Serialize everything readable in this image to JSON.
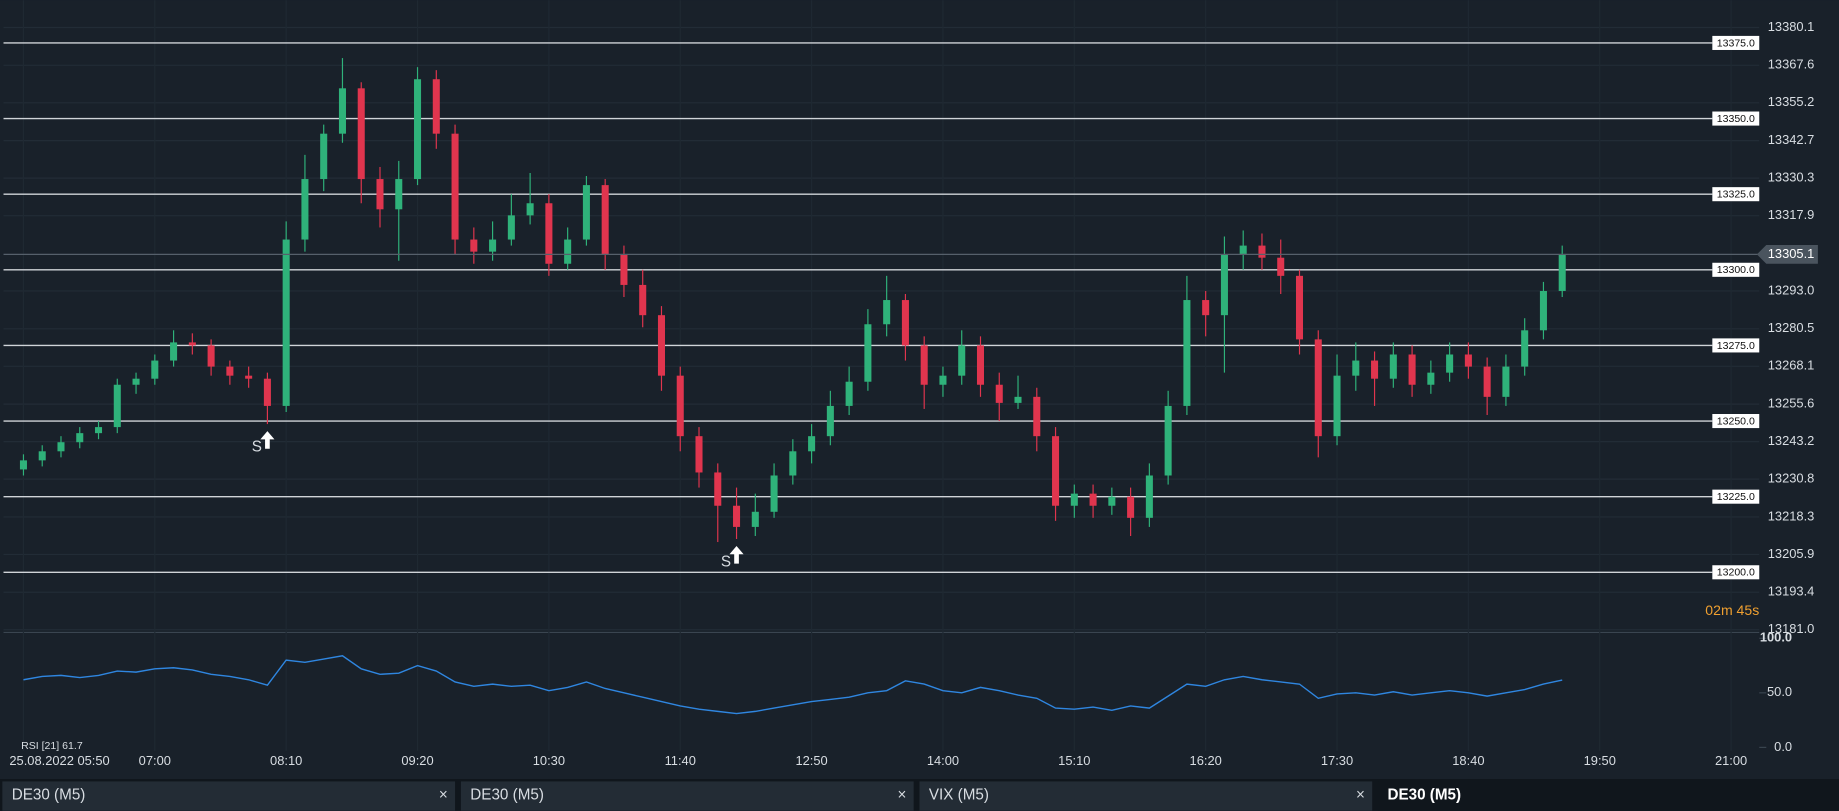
{
  "chart_data": {
    "type": "candlestick",
    "up_color": "#2fb27a",
    "down_color": "#e0354e",
    "ohlc": [
      [
        13234,
        13239,
        13232,
        13237
      ],
      [
        13237,
        13242,
        13235,
        13240
      ],
      [
        13240,
        13245,
        13238,
        13243
      ],
      [
        13243,
        13248,
        13241,
        13246
      ],
      [
        13246,
        13250,
        13244,
        13248
      ],
      [
        13248,
        13264,
        13246,
        13262
      ],
      [
        13262,
        13266,
        13259,
        13264
      ],
      [
        13264,
        13272,
        13262,
        13270
      ],
      [
        13270,
        13280,
        13268,
        13276
      ],
      [
        13276,
        13279,
        13272,
        13275
      ],
      [
        13275,
        13277,
        13265,
        13268
      ],
      [
        13268,
        13270,
        13262,
        13265
      ],
      [
        13265,
        13268,
        13261,
        13264
      ],
      [
        13264,
        13266,
        13249,
        13255
      ],
      [
        13255,
        13316,
        13253,
        13310
      ],
      [
        13310,
        13338,
        13306,
        13330
      ],
      [
        13330,
        13348,
        13326,
        13345
      ],
      [
        13345,
        13370,
        13342,
        13360
      ],
      [
        13360,
        13362,
        13322,
        13330
      ],
      [
        13330,
        13334,
        13314,
        13320
      ],
      [
        13320,
        13336,
        13303,
        13330
      ],
      [
        13330,
        13367,
        13328,
        13363
      ],
      [
        13363,
        13366,
        13340,
        13345
      ],
      [
        13345,
        13348,
        13305,
        13310
      ],
      [
        13310,
        13314,
        13302,
        13306
      ],
      [
        13306,
        13316,
        13303,
        13310
      ],
      [
        13310,
        13325,
        13308,
        13318
      ],
      [
        13318,
        13332,
        13315,
        13322
      ],
      [
        13322,
        13325,
        13298,
        13302
      ],
      [
        13302,
        13314,
        13300,
        13310
      ],
      [
        13310,
        13331,
        13308,
        13328
      ],
      [
        13328,
        13330,
        13300,
        13305
      ],
      [
        13305,
        13308,
        13291,
        13295
      ],
      [
        13295,
        13300,
        13281,
        13285
      ],
      [
        13285,
        13288,
        13260,
        13265
      ],
      [
        13265,
        13268,
        13240,
        13245
      ],
      [
        13245,
        13248,
        13228,
        13233
      ],
      [
        13233,
        13236,
        13210,
        13222
      ],
      [
        13222,
        13228,
        13211,
        13215
      ],
      [
        13215,
        13226,
        13212,
        13220
      ],
      [
        13220,
        13236,
        13218,
        13232
      ],
      [
        13232,
        13244,
        13229,
        13240
      ],
      [
        13240,
        13249,
        13236,
        13245
      ],
      [
        13245,
        13260,
        13242,
        13255
      ],
      [
        13255,
        13268,
        13252,
        13263
      ],
      [
        13263,
        13287,
        13260,
        13282
      ],
      [
        13282,
        13298,
        13278,
        13290
      ],
      [
        13290,
        13292,
        13270,
        13275
      ],
      [
        13275,
        13278,
        13254,
        13262
      ],
      [
        13262,
        13268,
        13258,
        13265
      ],
      [
        13265,
        13280,
        13262,
        13275
      ],
      [
        13275,
        13278,
        13258,
        13262
      ],
      [
        13262,
        13266,
        13250,
        13256
      ],
      [
        13256,
        13265,
        13254,
        13258
      ],
      [
        13258,
        13261,
        13240,
        13245
      ],
      [
        13245,
        13248,
        13217,
        13222
      ],
      [
        13222,
        13229,
        13218,
        13226
      ],
      [
        13226,
        13229,
        13218,
        13222
      ],
      [
        13222,
        13228,
        13219,
        13225
      ],
      [
        13225,
        13228,
        13212,
        13218
      ],
      [
        13218,
        13236,
        13215,
        13232
      ],
      [
        13232,
        13260,
        13229,
        13255
      ],
      [
        13255,
        13298,
        13252,
        13290
      ],
      [
        13290,
        13293,
        13278,
        13285
      ],
      [
        13285,
        13311,
        13266,
        13305
      ],
      [
        13305,
        13313,
        13300,
        13308
      ],
      [
        13308,
        13312,
        13300,
        13304
      ],
      [
        13304,
        13310,
        13292,
        13298
      ],
      [
        13298,
        13300,
        13272,
        13277
      ],
      [
        13277,
        13280,
        13238,
        13245
      ],
      [
        13245,
        13272,
        13242,
        13265
      ],
      [
        13265,
        13276,
        13260,
        13270
      ],
      [
        13270,
        13273,
        13255,
        13264
      ],
      [
        13264,
        13276,
        13261,
        13272
      ],
      [
        13272,
        13275,
        13258,
        13262
      ],
      [
        13262,
        13270,
        13259,
        13266
      ],
      [
        13266,
        13276,
        13263,
        13272
      ],
      [
        13272,
        13276,
        13264,
        13268
      ],
      [
        13268,
        13271,
        13252,
        13258
      ],
      [
        13258,
        13272,
        13255,
        13268
      ],
      [
        13268,
        13284,
        13265,
        13280
      ],
      [
        13280,
        13296,
        13277,
        13293
      ],
      [
        13293,
        13308,
        13291,
        13305.1
      ]
    ],
    "ylim": [
      13180.5,
      13389.1
    ],
    "yticks": [
      13380.1,
      13367.6,
      13355.2,
      13342.7,
      13330.3,
      13317.9,
      {
        "value": 13293,
        "label": "13293.0"
      },
      13280.5,
      13268.1,
      13255.6,
      13243.2,
      13230.8,
      13218.3,
      13205.9,
      13193.4,
      {
        "value": 13181,
        "label": "13181.0"
      }
    ],
    "xticks": [
      {
        "value": 0,
        "label": "25.08.2022 05:50"
      },
      {
        "value": 7,
        "label": "07:00"
      },
      {
        "value": 14,
        "label": "08:10"
      },
      {
        "value": 21,
        "label": "09:20"
      },
      {
        "value": 28,
        "label": "10:30"
      },
      {
        "value": 35,
        "label": "11:40"
      },
      {
        "value": 42,
        "label": "12:50"
      },
      {
        "value": 49,
        "label": "14:00"
      },
      {
        "value": 56,
        "label": "15:10"
      },
      {
        "value": 63,
        "label": "16:20"
      },
      {
        "value": 70,
        "label": "17:30"
      },
      {
        "value": 77,
        "label": "18:40"
      },
      {
        "value": 84,
        "label": "19:50"
      },
      {
        "value": 91,
        "label": "21:00"
      }
    ],
    "levels": [
      {
        "value": 13375,
        "label": "13375.0"
      },
      {
        "value": 13350,
        "label": "13350.0"
      },
      {
        "value": 13325,
        "label": "13325.0"
      },
      {
        "value": 13300,
        "label": "13300.0"
      },
      {
        "value": 13275,
        "label": "13275.0"
      },
      {
        "value": 13250,
        "label": "13250.0"
      },
      {
        "value": 13225,
        "label": "13225.0"
      },
      {
        "value": 13200,
        "label": "13200.0"
      }
    ],
    "signals": [
      {
        "index": 13,
        "label": "S"
      },
      {
        "index": 38,
        "label": "S"
      }
    ],
    "countdown": "02m 45s",
    "grid": true,
    "rsi": {
      "name": "RSI [21]",
      "color": "#2f86e0",
      "ylim": [
        0,
        100
      ],
      "yticks": [
        {
          "value": 100,
          "label": "100.0"
        },
        {
          "value": 50,
          "label": "50.0"
        },
        {
          "value": 0,
          "label": "0.0"
        }
      ],
      "values": [
        62,
        65,
        66,
        64,
        66,
        70,
        69,
        72,
        73,
        71,
        67,
        65,
        62,
        57,
        80,
        78,
        81,
        84,
        72,
        67,
        68,
        75,
        70,
        60,
        56,
        58,
        56,
        57,
        52,
        55,
        60,
        54,
        50,
        46,
        42,
        38,
        35,
        33,
        31,
        33,
        36,
        39,
        42,
        44,
        46,
        50,
        52,
        61,
        58,
        52,
        50,
        55,
        52,
        48,
        45,
        36,
        35,
        37,
        34,
        38,
        36,
        47,
        58,
        56,
        62,
        65,
        62,
        60,
        58,
        45,
        49,
        50,
        48,
        51,
        48,
        50,
        52,
        50,
        47,
        50,
        53,
        58,
        61.7
      ]
    }
  },
  "tabs": [
    {
      "title": "DE30 (M5)",
      "close": "×"
    },
    {
      "title": "DE30 (M5)",
      "close": "×"
    },
    {
      "title": "VIX (M5)",
      "close": "×"
    },
    {
      "title": "DE30 (M5)"
    }
  ]
}
